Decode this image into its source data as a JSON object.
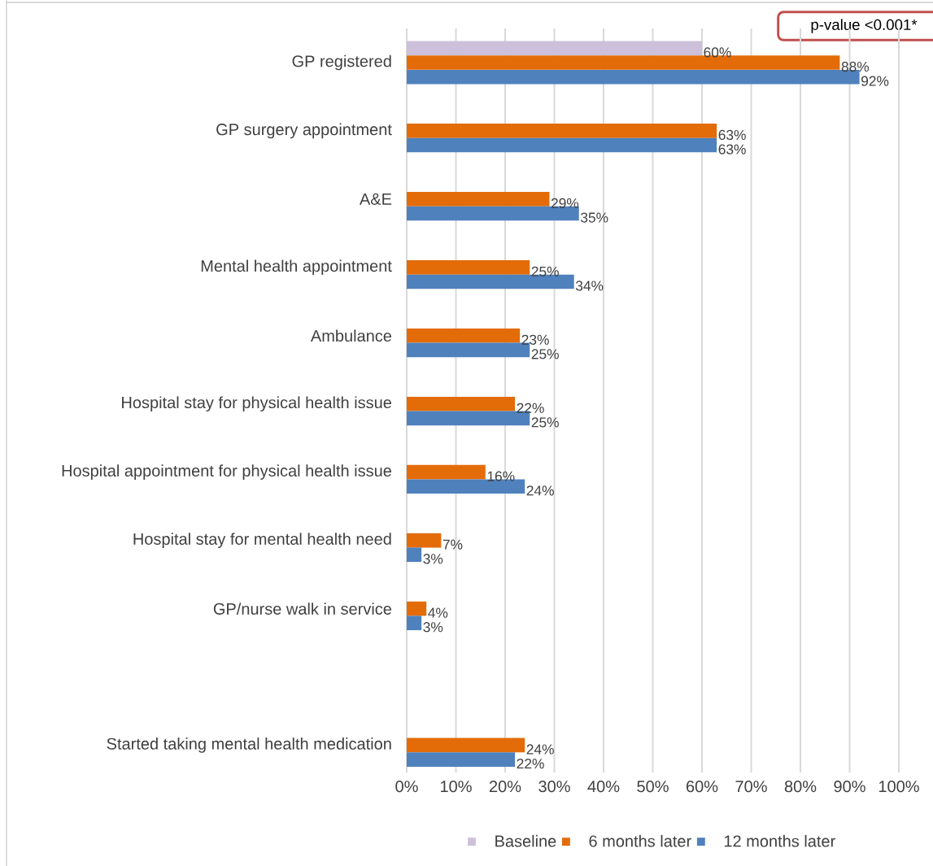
{
  "chart_data": {
    "type": "bar",
    "orientation": "horizontal",
    "categories": [
      "GP registered",
      "GP surgery appointment",
      "A&E",
      "Mental health appointment",
      "Ambulance",
      "Hospital stay for physical health issue",
      "Hospital appointment for physical health issue",
      "Hospital stay for mental health need",
      "GP/nurse walk in service",
      null,
      "Started taking mental health medication"
    ],
    "series": [
      {
        "name": "Baseline",
        "color": "#ccc0da",
        "values": [
          60,
          null,
          null,
          null,
          null,
          null,
          null,
          null,
          null,
          null,
          null
        ],
        "value_labels": [
          "60%",
          null,
          null,
          null,
          null,
          null,
          null,
          null,
          null,
          null,
          null
        ]
      },
      {
        "name": "6 months later",
        "color": "#e36c09",
        "values": [
          88,
          63,
          29,
          25,
          23,
          22,
          16,
          7,
          4,
          null,
          24
        ],
        "value_labels": [
          "88%",
          "63%",
          "29%",
          "25%",
          "23%",
          "22%",
          "16%",
          "7%",
          "4%",
          null,
          "24%"
        ]
      },
      {
        "name": "12 months later",
        "color": "#4f81bd",
        "values": [
          92,
          63,
          35,
          34,
          25,
          25,
          24,
          3,
          3,
          null,
          22
        ],
        "value_labels": [
          "92%",
          "63%",
          "35%",
          "34%",
          "25%",
          "25%",
          "24%",
          "3%",
          "3%",
          null,
          "22%"
        ]
      }
    ],
    "xlim": [
      0,
      100
    ],
    "xticks": [
      {
        "value": 0,
        "label": "0%"
      },
      {
        "value": 10,
        "label": "10%"
      },
      {
        "value": 20,
        "label": "20%"
      },
      {
        "value": 30,
        "label": "30%"
      },
      {
        "value": 40,
        "label": "40%"
      },
      {
        "value": 50,
        "label": "50%"
      },
      {
        "value": 60,
        "label": "60%"
      },
      {
        "value": 70,
        "label": "70%"
      },
      {
        "value": 80,
        "label": "80%"
      },
      {
        "value": 90,
        "label": "90%"
      },
      {
        "value": 100,
        "label": "100%"
      }
    ],
    "grid": "x",
    "legend": "bottom",
    "annotations": [
      "p-value <0.001*"
    ]
  }
}
